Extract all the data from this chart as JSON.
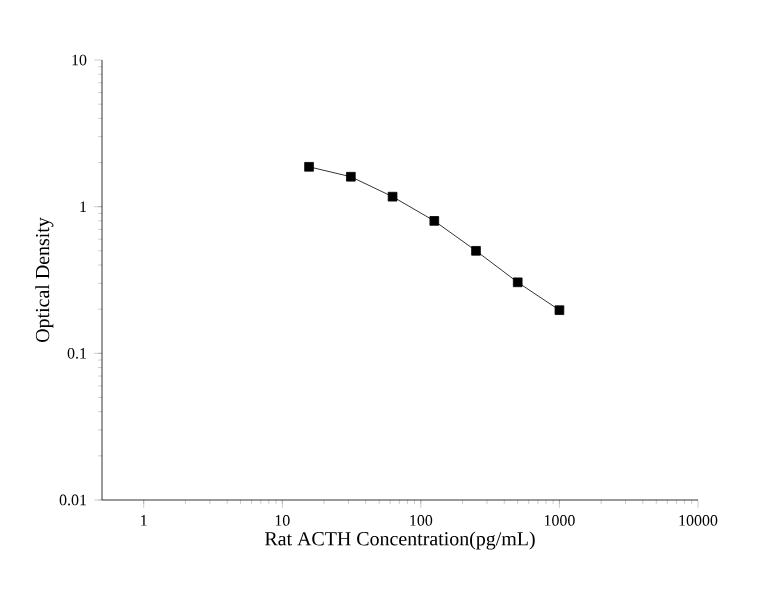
{
  "chart_data": {
    "type": "line",
    "xlabel": "Rat ACTH Concentration(pg/mL)",
    "ylabel": "Optical Density",
    "x": [
      15.6,
      31.25,
      62.5,
      125,
      250,
      500,
      1000
    ],
    "series": [
      {
        "color": "#000000",
        "values": [
          1.87,
          1.6,
          1.17,
          0.8,
          0.5,
          0.305,
          0.197
        ]
      }
    ],
    "log": "xy",
    "xlim": [
      0.5,
      10000
    ],
    "ylim": [
      0.01,
      10
    ],
    "xticks": [
      1,
      10,
      100,
      1000,
      10000
    ],
    "yticks": [
      0.01,
      0.1,
      1,
      10
    ],
    "marker": "square",
    "line_style": "solid",
    "grid": false
  }
}
